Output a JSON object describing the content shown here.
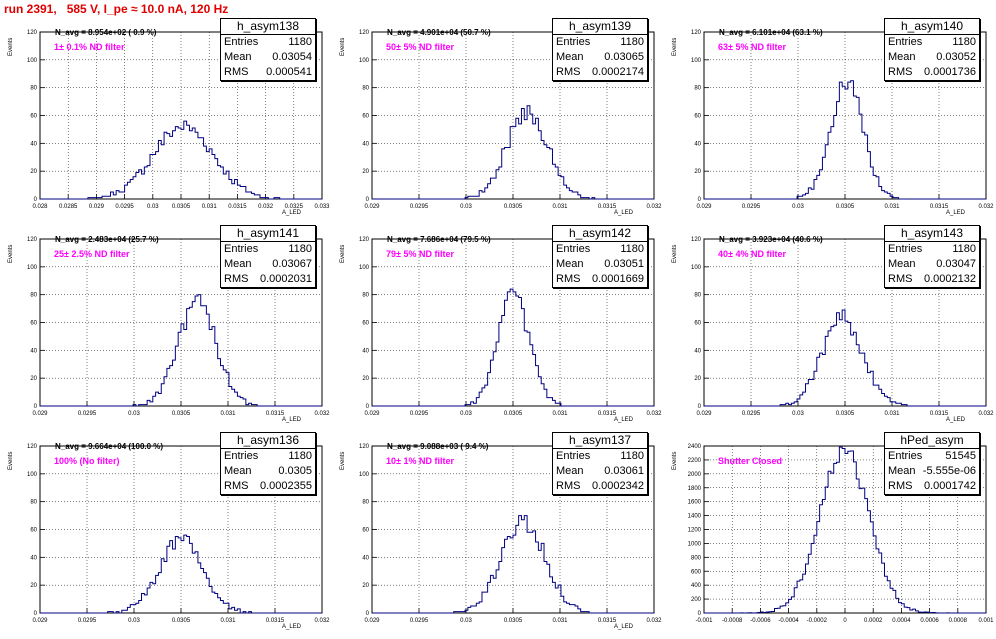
{
  "title": "run 2391,   585 V, I_pe ≈ 10.0 nA, 120 Hz",
  "colors": {
    "hist": "#000080",
    "title": "#e00000",
    "label": "#ff00ff"
  },
  "chart_data": [
    {
      "type": "histogram",
      "name": "h_asym138",
      "stats": {
        "entries_label": "Entries",
        "entries": "1180",
        "mean_label": "Mean",
        "mean": "0.03054",
        "rms_label": "RMS",
        "rms": "0.000541"
      },
      "navg": "N_avg = 8.954e+02 ( 0.9 %)",
      "filter": "1± 0.1% ND filter",
      "ylabel": "Events",
      "xlabel": "A_LED",
      "xlim": [
        0.028,
        0.033
      ],
      "ylim": [
        0,
        120
      ],
      "xticks": [
        "0.028",
        "0.0285",
        "0.029",
        "0.0295",
        "0.03",
        "0.0305",
        "0.031",
        "0.0315",
        "0.032",
        "0.0325",
        "0.033"
      ],
      "yticks": [
        "0",
        "20",
        "40",
        "60",
        "80",
        "100",
        "120"
      ],
      "mu": 0.03054,
      "sigma": 0.000541,
      "peak": 52
    },
    {
      "type": "histogram",
      "name": "h_asym139",
      "stats": {
        "entries_label": "Entries",
        "entries": "1180",
        "mean_label": "Mean",
        "mean": "0.03065",
        "rms_label": "RMS",
        "rms": "0.0002174"
      },
      "navg": "N_avg = 4.901e+04 (50.7 %)",
      "filter": "50± 5% ND filter",
      "ylabel": "Events",
      "xlabel": "A_LED",
      "xlim": [
        0.029,
        0.032
      ],
      "ylim": [
        0,
        120
      ],
      "xticks": [
        "0.029",
        "0.0295",
        "0.03",
        "0.0305",
        "0.031",
        "0.0315",
        "0.032"
      ],
      "yticks": [
        "0",
        "20",
        "40",
        "60",
        "80",
        "100",
        "120"
      ],
      "mu": 0.03065,
      "sigma": 0.0002174,
      "peak": 63
    },
    {
      "type": "histogram",
      "name": "h_asym140",
      "stats": {
        "entries_label": "Entries",
        "entries": "1180",
        "mean_label": "Mean",
        "mean": "0.03052",
        "rms_label": "RMS",
        "rms": "0.0001736"
      },
      "navg": "N_avg = 6.101e+04 (63.1 %)",
      "filter": "63± 5% ND filter",
      "ylabel": "Events",
      "xlabel": "A_LED",
      "xlim": [
        0.029,
        0.032
      ],
      "ylim": [
        0,
        120
      ],
      "xticks": [
        "0.029",
        "0.0295",
        "0.03",
        "0.0305",
        "0.031",
        "0.0315",
        "0.032"
      ],
      "yticks": [
        "0",
        "20",
        "40",
        "60",
        "80",
        "100",
        "120"
      ],
      "mu": 0.03052,
      "sigma": 0.0001736,
      "peak": 85
    },
    {
      "type": "histogram",
      "name": "h_asym141",
      "stats": {
        "entries_label": "Entries",
        "entries": "1180",
        "mean_label": "Mean",
        "mean": "0.03067",
        "rms_label": "RMS",
        "rms": "0.0002031"
      },
      "navg": "N_avg = 2.483e+04 (25.7 %)",
      "filter": "25± 2.5% ND filter",
      "ylabel": "Events",
      "xlabel": "A_LED",
      "xlim": [
        0.029,
        0.032
      ],
      "ylim": [
        0,
        120
      ],
      "xticks": [
        "0.029",
        "0.0295",
        "0.03",
        "0.0305",
        "0.031",
        "0.0315",
        "0.032"
      ],
      "yticks": [
        "0",
        "20",
        "40",
        "60",
        "80",
        "100",
        "120"
      ],
      "mu": 0.03067,
      "sigma": 0.0002031,
      "peak": 74
    },
    {
      "type": "histogram",
      "name": "h_asym142",
      "stats": {
        "entries_label": "Entries",
        "entries": "1180",
        "mean_label": "Mean",
        "mean": "0.03051",
        "rms_label": "RMS",
        "rms": "0.0001669"
      },
      "navg": "N_avg = 7.686e+04 (79.5 %)",
      "filter": "79± 5% ND filter",
      "ylabel": "Events",
      "xlabel": "A_LED",
      "xlim": [
        0.029,
        0.032
      ],
      "ylim": [
        0,
        120
      ],
      "xticks": [
        "0.029",
        "0.0295",
        "0.03",
        "0.0305",
        "0.031",
        "0.0315",
        "0.032"
      ],
      "yticks": [
        "0",
        "20",
        "40",
        "60",
        "80",
        "100",
        "120"
      ],
      "mu": 0.03051,
      "sigma": 0.0001669,
      "peak": 80
    },
    {
      "type": "histogram",
      "name": "h_asym143",
      "stats": {
        "entries_label": "Entries",
        "entries": "1180",
        "mean_label": "Mean",
        "mean": "0.03047",
        "rms_label": "RMS",
        "rms": "0.0002132"
      },
      "navg": "N_avg = 3.923e+04 (40.6 %)",
      "filter": "40± 4% ND filter",
      "ylabel": "Events",
      "xlabel": "A_LED",
      "xlim": [
        0.029,
        0.032
      ],
      "ylim": [
        0,
        120
      ],
      "xticks": [
        "0.029",
        "0.0295",
        "0.03",
        "0.0305",
        "0.031",
        "0.0315",
        "0.032"
      ],
      "yticks": [
        "0",
        "20",
        "40",
        "60",
        "80",
        "100",
        "120"
      ],
      "mu": 0.03047,
      "sigma": 0.0002132,
      "peak": 64
    },
    {
      "type": "histogram",
      "name": "h_asym136",
      "stats": {
        "entries_label": "Entries",
        "entries": "1180",
        "mean_label": "Mean",
        "mean": "0.0305",
        "rms_label": "RMS",
        "rms": "0.0002355"
      },
      "navg": "N_avg = 9.664e+04 (100.0 %)",
      "filter": "100% (No filter)",
      "ylabel": "Events",
      "xlabel": "A_LED",
      "xlim": [
        0.029,
        0.032
      ],
      "ylim": [
        0,
        120
      ],
      "xticks": [
        "0.029",
        "0.0295",
        "0.03",
        "0.0305",
        "0.031",
        "0.0315",
        "0.032"
      ],
      "yticks": [
        "0",
        "20",
        "40",
        "60",
        "80",
        "100",
        "120"
      ],
      "mu": 0.0305,
      "sigma": 0.0002355,
      "peak": 52
    },
    {
      "type": "histogram",
      "name": "h_asym137",
      "stats": {
        "entries_label": "Entries",
        "entries": "1180",
        "mean_label": "Mean",
        "mean": "0.03061",
        "rms_label": "RMS",
        "rms": "0.0002342"
      },
      "navg": "N_avg = 9.088e+03 ( 9.4 %)",
      "filter": "10± 1% ND filter",
      "ylabel": "Events",
      "xlabel": "A_LED",
      "xlim": [
        0.029,
        0.032
      ],
      "ylim": [
        0,
        120
      ],
      "xticks": [
        "0.029",
        "0.0295",
        "0.03",
        "0.0305",
        "0.031",
        "0.0315",
        "0.032"
      ],
      "yticks": [
        "0",
        "20",
        "40",
        "60",
        "80",
        "100",
        "120"
      ],
      "mu": 0.03061,
      "sigma": 0.0002342,
      "peak": 66
    },
    {
      "type": "histogram",
      "name": "hPed_asym",
      "stats": {
        "entries_label": "Entries",
        "entries": "51545",
        "mean_label": "Mean",
        "mean": "-5.555e-06",
        "rms_label": "RMS",
        "rms": "0.0001742"
      },
      "navg": "",
      "filter": "Shutter Closed",
      "ylabel": "Events",
      "xlabel": "",
      "xlim": [
        -0.001,
        0.001
      ],
      "ylim": [
        0,
        2400
      ],
      "xticks": [
        "-0.001",
        "-0.0008",
        "-0.0006",
        "-0.0004",
        "-0.0002",
        "0",
        "0.0002",
        "0.0004",
        "0.0006",
        "0.0008",
        "0.001"
      ],
      "yticks": [
        "0",
        "200",
        "400",
        "600",
        "800",
        "1000",
        "1200",
        "1400",
        "1600",
        "1800",
        "2000",
        "2200",
        "2400"
      ],
      "mu": -5.555e-06,
      "sigma": 0.0001742,
      "peak": 2340
    }
  ]
}
